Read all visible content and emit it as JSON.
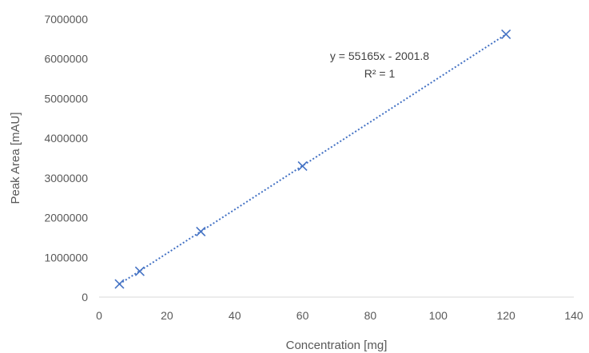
{
  "chart_data": {
    "type": "scatter",
    "title": "",
    "xlabel": "Concentration [mg]",
    "ylabel": "Peak Area [mAU]",
    "xlim": [
      0,
      140
    ],
    "ylim": [
      0,
      7000000
    ],
    "x_ticks": [
      0,
      20,
      40,
      60,
      80,
      100,
      120,
      140
    ],
    "y_ticks": [
      0,
      1000000,
      2000000,
      3000000,
      4000000,
      5000000,
      6000000,
      7000000
    ],
    "grid": false,
    "marker": "x",
    "series": [
      {
        "x": [
          6,
          12,
          30,
          60,
          120
        ],
        "y": [
          330000,
          650000,
          1650000,
          3300000,
          6620000
        ],
        "color": "#4472C4"
      }
    ],
    "trendline": {
      "type": "linear",
      "slope": 55165,
      "intercept": -2001.8,
      "style": "dotted",
      "color": "#4472C4",
      "equation_label": "y = 55165x - 2001.8",
      "r2_label": "R² = 1"
    }
  }
}
